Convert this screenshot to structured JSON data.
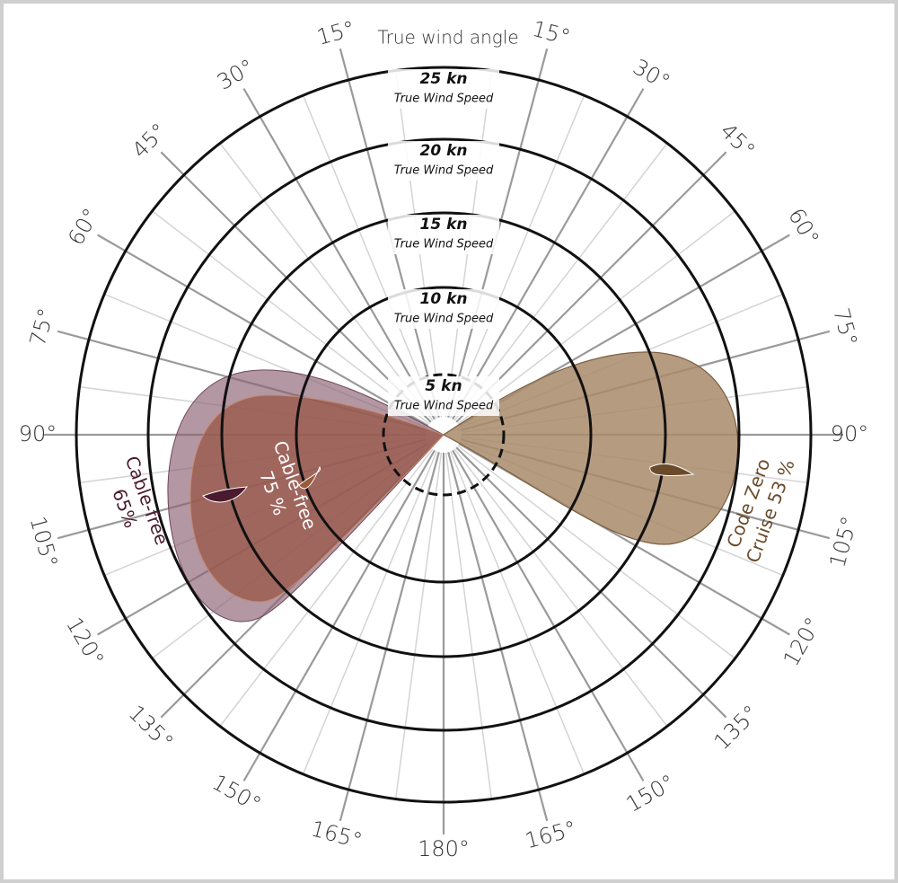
{
  "title": "True wind angle",
  "rings": [
    {
      "speed": "5 kn",
      "label": "True Wind Speed"
    },
    {
      "speed": "10 kn",
      "label": "True Wind Speed"
    },
    {
      "speed": "15 kn",
      "label": "True Wind Speed"
    },
    {
      "speed": "20 kn",
      "label": "True Wind Speed"
    },
    {
      "speed": "25 kn",
      "label": "True Wind Speed"
    }
  ],
  "angle_labels": [
    "15°",
    "30°",
    "45°",
    "60°",
    "75°",
    "90°",
    "105°",
    "120°",
    "135°",
    "150°",
    "165°",
    "180°"
  ],
  "sails": [
    {
      "line1": "Cable-free",
      "line2": "65%"
    },
    {
      "line1": "Cable-free",
      "line2": "75 %"
    },
    {
      "line1": "Code Zero",
      "line2": "Cruise 53 %"
    }
  ]
}
